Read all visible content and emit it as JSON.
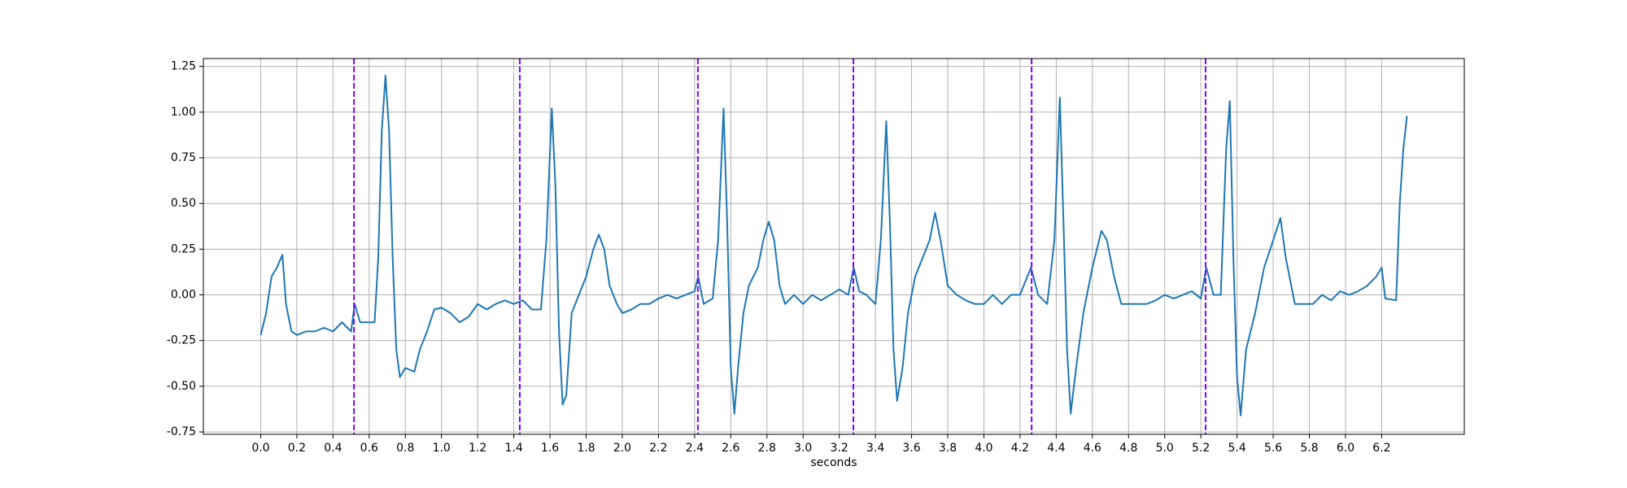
{
  "chart_data": {
    "type": "line",
    "xlabel": "seconds",
    "x": [
      0.0,
      0.03,
      0.06,
      0.09,
      0.12,
      0.14,
      0.17,
      0.2,
      0.25,
      0.3,
      0.35,
      0.4,
      0.45,
      0.5,
      0.52,
      0.55,
      0.6,
      0.63,
      0.65,
      0.67,
      0.69,
      0.71,
      0.73,
      0.75,
      0.77,
      0.8,
      0.85,
      0.88,
      0.92,
      0.96,
      1.0,
      1.05,
      1.1,
      1.15,
      1.2,
      1.25,
      1.3,
      1.35,
      1.4,
      1.45,
      1.5,
      1.55,
      1.58,
      1.61,
      1.63,
      1.65,
      1.67,
      1.69,
      1.72,
      1.76,
      1.8,
      1.84,
      1.87,
      1.9,
      1.93,
      1.97,
      2.0,
      2.05,
      2.1,
      2.15,
      2.2,
      2.25,
      2.3,
      2.35,
      2.4,
      2.42,
      2.45,
      2.5,
      2.53,
      2.56,
      2.58,
      2.6,
      2.62,
      2.64,
      2.67,
      2.7,
      2.75,
      2.78,
      2.81,
      2.84,
      2.87,
      2.9,
      2.95,
      3.0,
      3.05,
      3.1,
      3.15,
      3.2,
      3.25,
      3.28,
      3.31,
      3.35,
      3.4,
      3.43,
      3.46,
      3.48,
      3.5,
      3.52,
      3.55,
      3.58,
      3.62,
      3.66,
      3.7,
      3.73,
      3.76,
      3.8,
      3.85,
      3.9,
      3.95,
      4.0,
      4.05,
      4.1,
      4.15,
      4.2,
      4.26,
      4.3,
      4.35,
      4.39,
      4.42,
      4.44,
      4.46,
      4.48,
      4.51,
      4.55,
      4.6,
      4.65,
      4.68,
      4.72,
      4.76,
      4.8,
      4.85,
      4.9,
      4.95,
      5.0,
      5.05,
      5.1,
      5.15,
      5.2,
      5.23,
      5.27,
      5.31,
      5.34,
      5.36,
      5.38,
      5.4,
      5.42,
      5.45,
      5.5,
      5.55,
      5.6,
      5.64,
      5.67,
      5.72,
      5.77,
      5.82,
      5.87,
      5.92,
      5.97,
      6.02,
      6.07,
      6.12,
      6.17,
      6.2,
      6.22,
      6.28,
      6.3,
      6.32,
      6.34
    ],
    "values": [
      -0.22,
      -0.1,
      0.1,
      0.15,
      0.22,
      -0.05,
      -0.2,
      -0.22,
      -0.2,
      -0.2,
      -0.18,
      -0.2,
      -0.15,
      -0.2,
      -0.05,
      -0.15,
      -0.15,
      -0.15,
      0.2,
      0.9,
      1.2,
      0.9,
      0.2,
      -0.3,
      -0.45,
      -0.4,
      -0.42,
      -0.3,
      -0.2,
      -0.08,
      -0.07,
      -0.1,
      -0.15,
      -0.12,
      -0.05,
      -0.08,
      -0.05,
      -0.03,
      -0.05,
      -0.03,
      -0.08,
      -0.08,
      0.3,
      1.02,
      0.6,
      -0.2,
      -0.6,
      -0.55,
      -0.1,
      0.0,
      0.1,
      0.25,
      0.33,
      0.25,
      0.05,
      -0.05,
      -0.1,
      -0.08,
      -0.05,
      -0.05,
      -0.02,
      0.0,
      -0.02,
      0.0,
      0.02,
      0.1,
      -0.05,
      -0.02,
      0.3,
      1.02,
      0.4,
      -0.4,
      -0.65,
      -0.4,
      -0.1,
      0.05,
      0.15,
      0.3,
      0.4,
      0.3,
      0.05,
      -0.05,
      0.0,
      -0.05,
      0.0,
      -0.03,
      0.0,
      0.03,
      0.0,
      0.15,
      0.02,
      0.0,
      -0.05,
      0.3,
      0.95,
      0.4,
      -0.3,
      -0.58,
      -0.4,
      -0.1,
      0.1,
      0.2,
      0.3,
      0.45,
      0.3,
      0.05,
      0.0,
      -0.03,
      -0.05,
      -0.05,
      0.0,
      -0.05,
      0.0,
      0.0,
      0.15,
      0.0,
      -0.05,
      0.3,
      1.08,
      0.4,
      -0.3,
      -0.65,
      -0.4,
      -0.1,
      0.15,
      0.35,
      0.3,
      0.1,
      -0.05,
      -0.05,
      -0.05,
      -0.05,
      -0.03,
      0.0,
      -0.02,
      0.0,
      0.02,
      -0.02,
      0.15,
      0.0,
      0.0,
      0.8,
      1.06,
      0.2,
      -0.45,
      -0.66,
      -0.3,
      -0.1,
      0.15,
      0.3,
      0.42,
      0.2,
      -0.05,
      -0.05,
      -0.05,
      0.0,
      -0.03,
      0.02,
      0.0,
      0.02,
      0.05,
      0.1,
      0.15,
      -0.02,
      -0.03,
      0.5,
      0.8,
      0.98
    ],
    "color": "#1f77b4",
    "vlines": [
      0.516,
      1.433,
      2.418,
      3.278,
      4.264,
      5.226
    ],
    "vline_color": "#8000ff",
    "xlim": [
      -0.317,
      6.657
    ],
    "ylim": [
      -0.763,
      1.293
    ],
    "xticks": [
      {
        "value": 0,
        "label": "0.0"
      },
      0.2,
      0.4,
      0.6,
      0.8,
      {
        "value": 1,
        "label": "1.0"
      },
      1.2,
      1.4,
      1.6,
      1.8,
      {
        "value": 2,
        "label": "2.0"
      },
      2.2,
      2.4,
      2.6,
      2.8,
      {
        "value": 3,
        "label": "3.0"
      },
      3.2,
      3.4,
      3.6,
      3.8,
      {
        "value": 4,
        "label": "4.0"
      },
      4.2,
      4.4,
      4.6,
      4.8,
      {
        "value": 5,
        "label": "5.0"
      },
      5.2,
      5.4,
      5.6,
      5.8,
      {
        "value": 6,
        "label": "6.0"
      },
      6.2
    ],
    "yticks": [
      1.25,
      {
        "value": 1,
        "label": "1.00"
      },
      0.75,
      {
        "value": 0.5,
        "label": "0.50"
      },
      0.25,
      {
        "value": 0,
        "label": "0.00"
      },
      -0.25,
      {
        "value": -0.5,
        "label": "-0.50"
      },
      -0.75
    ],
    "grid": true
  }
}
